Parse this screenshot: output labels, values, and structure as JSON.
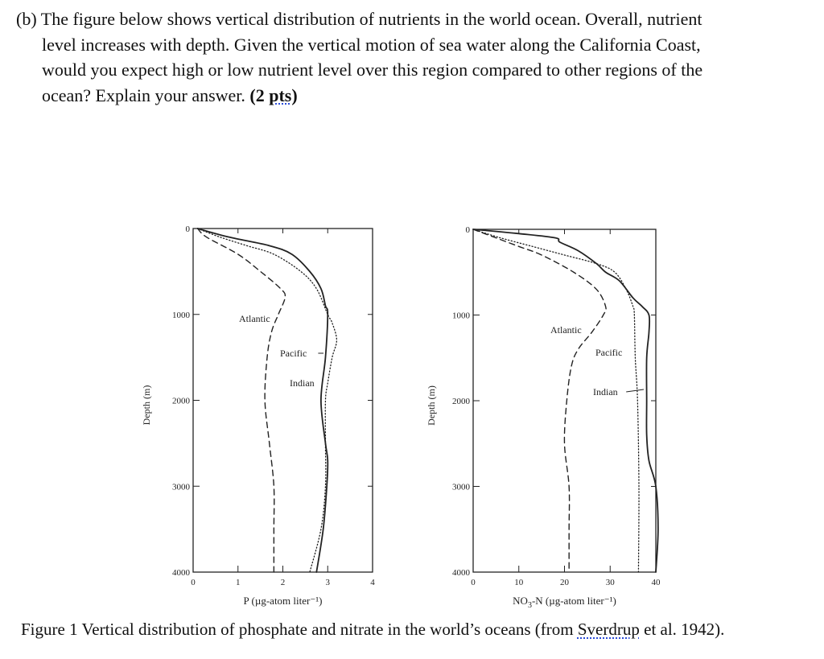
{
  "question": {
    "prefix": "(b)",
    "lines": [
      "The figure below shows vertical distribution of nutrients in the world ocean. Overall, nutrient",
      "level increases with depth. Given the vertical motion of sea water along the California Coast,",
      "would you expect high or low nutrient level over this region compared to other regions of the",
      "ocean? Explain your answer. "
    ],
    "points_open": "(",
    "points_num": "2 ",
    "points_word": "pts",
    "points_close": ")"
  },
  "caption": {
    "before": "Figure 1 Vertical distribution of phosphate and nitrate in the world’s oceans (from ",
    "author": "Sverdrup",
    "after": " et al. 1942)."
  },
  "chart_data": [
    {
      "type": "line",
      "xlabel": "P (µg-atom liter⁻¹)",
      "ylabel": "Depth (m)",
      "xlim": [
        0,
        4
      ],
      "ylim": [
        4000,
        0
      ],
      "xticks": [
        "0",
        "1",
        "2",
        "3",
        "4"
      ],
      "yticks": [
        "0",
        "1000",
        "2000",
        "3000",
        "4000"
      ],
      "series": [
        {
          "name": "Atlantic",
          "style": "dashed",
          "depth": [
            0,
            100,
            300,
            500,
            700,
            800,
            1000,
            1200,
            1500,
            2000,
            2500,
            3000,
            3500,
            4000
          ],
          "values": [
            0.1,
            0.3,
            1.0,
            1.5,
            1.95,
            2.05,
            1.9,
            1.75,
            1.65,
            1.6,
            1.7,
            1.8,
            1.8,
            1.8
          ]
        },
        {
          "name": "Pacific",
          "style": "dotted",
          "depth": [
            0,
            100,
            200,
            300,
            500,
            700,
            1000,
            1100,
            1300,
            1500,
            1800,
            2000,
            2500,
            3000,
            3500,
            4000
          ],
          "values": [
            0.1,
            0.6,
            1.2,
            1.8,
            2.4,
            2.75,
            3.0,
            3.1,
            3.2,
            3.1,
            3.0,
            2.95,
            2.95,
            2.95,
            2.85,
            2.6
          ]
        },
        {
          "name": "Indian",
          "style": "solid",
          "depth": [
            0,
            100,
            200,
            300,
            500,
            700,
            900,
            1000,
            1500,
            2000,
            2500,
            2700,
            3000,
            3500,
            4000
          ],
          "values": [
            0.1,
            0.8,
            1.7,
            2.2,
            2.6,
            2.85,
            2.95,
            3.0,
            2.95,
            2.85,
            2.95,
            3.0,
            2.98,
            2.9,
            2.75
          ]
        }
      ]
    },
    {
      "type": "line",
      "xlabel_main": "NO",
      "xlabel_sub": "3",
      "xlabel_rest": "-N (µg-atom liter⁻¹)",
      "ylabel": "Depth (m)",
      "xlim": [
        0,
        40
      ],
      "ylim": [
        4000,
        0
      ],
      "xticks": [
        "0",
        "10",
        "20",
        "30",
        "40"
      ],
      "yticks": [
        "0",
        "1000",
        "2000",
        "3000",
        "4000"
      ],
      "series": [
        {
          "name": "Atlantic",
          "style": "dashed",
          "depth": [
            0,
            100,
            200,
            300,
            500,
            700,
            900,
            1000,
            1200,
            1400,
            1600,
            2000,
            2500,
            3000,
            3500,
            4000
          ],
          "values": [
            0,
            5,
            10,
            15,
            22,
            27,
            29,
            28.5,
            26,
            23,
            21.5,
            20.5,
            20,
            21,
            21,
            21
          ]
        },
        {
          "name": "Pacific",
          "style": "dotted",
          "depth": [
            0,
            100,
            200,
            300,
            400,
            500,
            700,
            900,
            1000,
            1500,
            2000,
            3000,
            4000
          ],
          "values": [
            0,
            6,
            13,
            20,
            27,
            31,
            33.5,
            35,
            35.3,
            35.5,
            36,
            36.3,
            36.2
          ]
        },
        {
          "name": "Indian",
          "style": "solid",
          "depth": [
            0,
            50,
            100,
            150,
            250,
            400,
            500,
            600,
            800,
            900,
            1000,
            1200,
            1500,
            2000,
            2400,
            2700,
            3000,
            3500,
            4000
          ],
          "values": [
            0,
            10,
            18,
            19,
            23,
            27,
            29,
            32,
            35,
            37,
            38.5,
            38.5,
            38,
            38,
            38,
            38.5,
            40,
            40.5,
            40
          ]
        }
      ]
    }
  ]
}
